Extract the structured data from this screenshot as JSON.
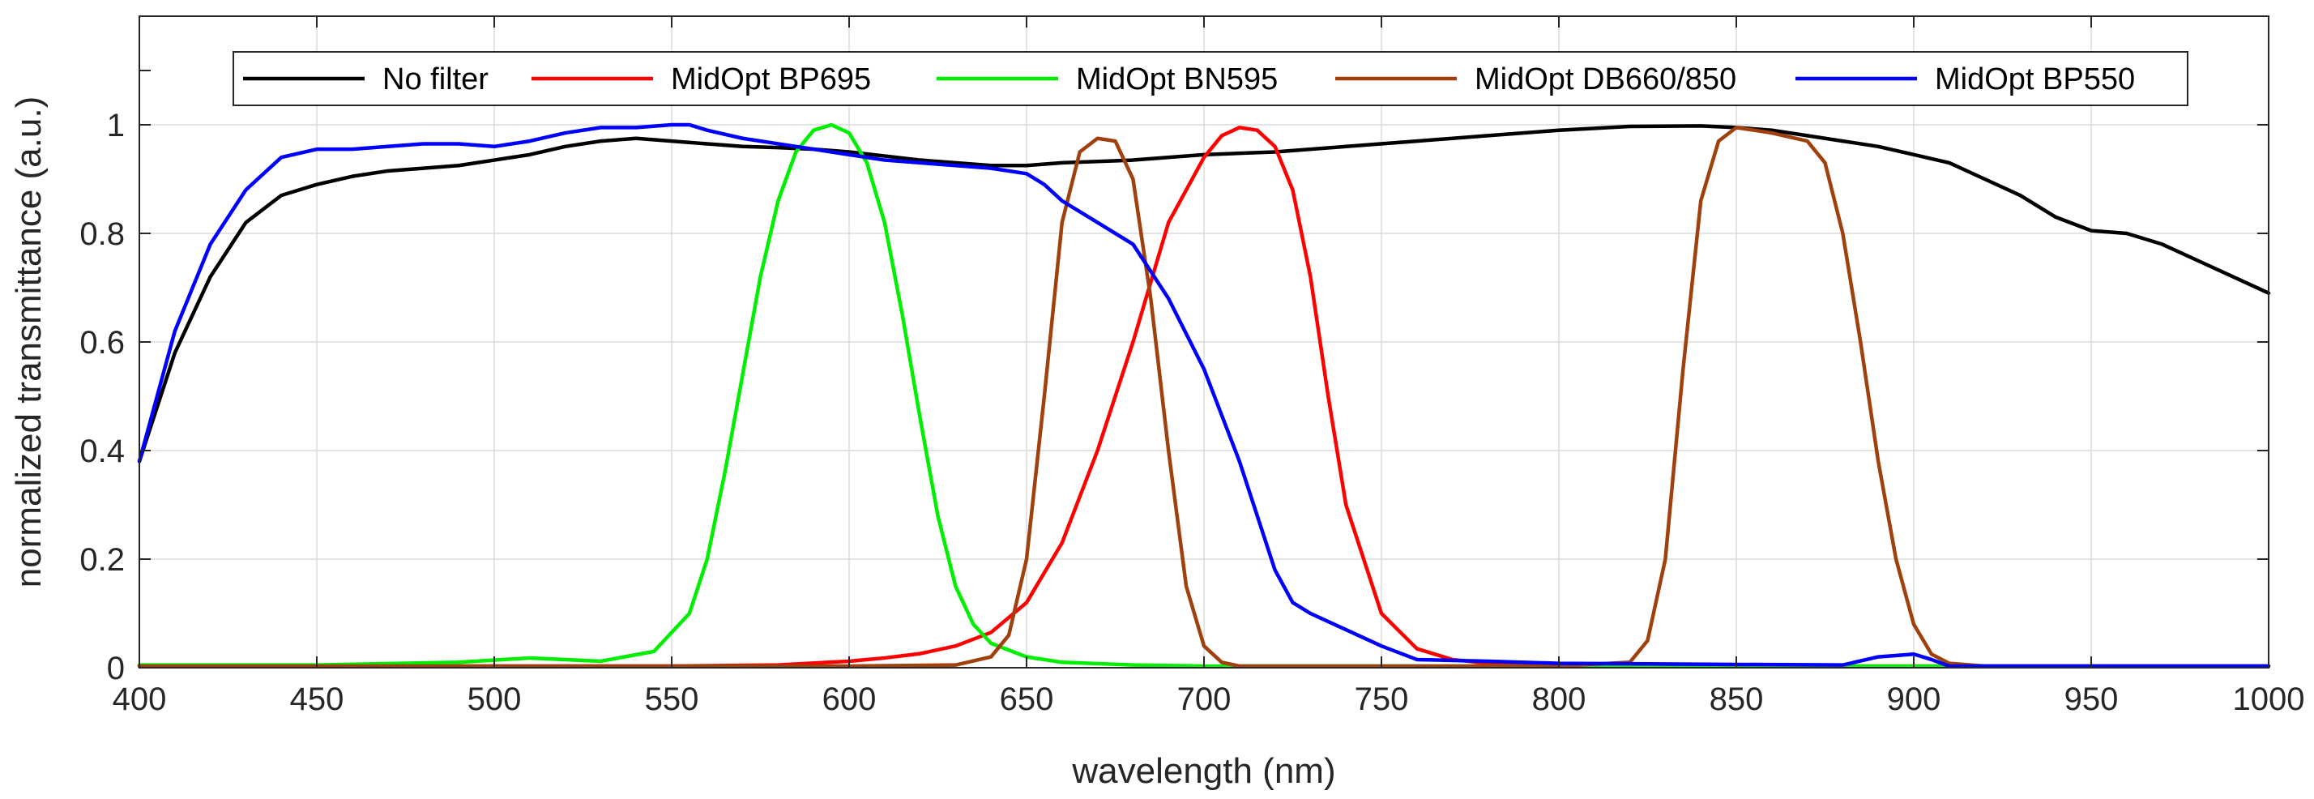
{
  "chart_data": {
    "type": "line",
    "title": "",
    "xlabel": "wavelength (nm)",
    "ylabel": "normalized transmittance (a.u.)",
    "xlim": [
      400,
      1000
    ],
    "ylim": [
      0,
      1.2
    ],
    "xticks": [
      400,
      450,
      500,
      550,
      600,
      650,
      700,
      750,
      800,
      850,
      900,
      950,
      1000
    ],
    "yticks": [
      0,
      0.2,
      0.4,
      0.6,
      0.8,
      1
    ],
    "ytick_labels": [
      "0",
      "0.2",
      "0.4",
      "0.6",
      "0.8",
      "1"
    ],
    "grid": true,
    "legend_position": "top",
    "series": [
      {
        "name": "No filter",
        "color": "#000000",
        "x": [
          400,
          410,
          420,
          430,
          440,
          450,
          460,
          470,
          480,
          490,
          500,
          510,
          520,
          530,
          540,
          550,
          560,
          570,
          580,
          590,
          600,
          620,
          640,
          650,
          660,
          680,
          700,
          720,
          740,
          760,
          780,
          800,
          820,
          840,
          850,
          860,
          870,
          880,
          890,
          900,
          910,
          920,
          930,
          940,
          950,
          960,
          970,
          980,
          990,
          1000
        ],
        "y": [
          0.38,
          0.58,
          0.72,
          0.82,
          0.87,
          0.89,
          0.905,
          0.915,
          0.92,
          0.925,
          0.935,
          0.945,
          0.96,
          0.97,
          0.975,
          0.97,
          0.965,
          0.96,
          0.958,
          0.955,
          0.95,
          0.935,
          0.925,
          0.925,
          0.93,
          0.935,
          0.945,
          0.95,
          0.96,
          0.97,
          0.98,
          0.99,
          0.997,
          0.998,
          0.995,
          0.99,
          0.98,
          0.97,
          0.96,
          0.945,
          0.93,
          0.9,
          0.87,
          0.83,
          0.805,
          0.8,
          0.78,
          0.75,
          0.72,
          0.69
        ]
      },
      {
        "name": "MidOpt BP695",
        "color": "#ff0000",
        "x": [
          400,
          450,
          500,
          550,
          580,
          600,
          610,
          620,
          630,
          640,
          650,
          660,
          670,
          680,
          690,
          700,
          705,
          710,
          715,
          720,
          725,
          730,
          735,
          740,
          750,
          760,
          770,
          780,
          800,
          850,
          900,
          1000
        ],
        "y": [
          0.003,
          0.003,
          0.003,
          0.003,
          0.005,
          0.012,
          0.018,
          0.026,
          0.04,
          0.065,
          0.12,
          0.23,
          0.4,
          0.6,
          0.82,
          0.94,
          0.98,
          0.995,
          0.99,
          0.96,
          0.88,
          0.72,
          0.5,
          0.3,
          0.1,
          0.035,
          0.015,
          0.008,
          0.004,
          0.003,
          0.003,
          0.003
        ]
      },
      {
        "name": "MidOpt BN595",
        "color": "#00ee00",
        "x": [
          400,
          450,
          490,
          510,
          530,
          545,
          555,
          560,
          565,
          570,
          575,
          580,
          585,
          590,
          595,
          600,
          605,
          610,
          615,
          620,
          625,
          630,
          635,
          640,
          650,
          660,
          680,
          700,
          750,
          800,
          900,
          1000
        ],
        "y": [
          0.005,
          0.005,
          0.01,
          0.018,
          0.012,
          0.03,
          0.1,
          0.2,
          0.36,
          0.54,
          0.72,
          0.86,
          0.95,
          0.99,
          1.0,
          0.985,
          0.93,
          0.82,
          0.65,
          0.46,
          0.28,
          0.15,
          0.08,
          0.045,
          0.02,
          0.01,
          0.005,
          0.003,
          0.003,
          0.003,
          0.003,
          0.003
        ]
      },
      {
        "name": "MidOpt DB660/850",
        "color": "#a0410d",
        "x": [
          400,
          500,
          600,
          630,
          640,
          645,
          650,
          655,
          660,
          665,
          670,
          675,
          680,
          685,
          690,
          695,
          700,
          705,
          710,
          750,
          800,
          820,
          825,
          830,
          835,
          840,
          845,
          850,
          855,
          860,
          870,
          875,
          880,
          885,
          890,
          895,
          900,
          905,
          910,
          920,
          1000
        ],
        "y": [
          0.003,
          0.003,
          0.003,
          0.005,
          0.02,
          0.06,
          0.2,
          0.5,
          0.82,
          0.95,
          0.975,
          0.97,
          0.9,
          0.68,
          0.4,
          0.15,
          0.04,
          0.01,
          0.003,
          0.003,
          0.003,
          0.01,
          0.05,
          0.2,
          0.55,
          0.86,
          0.97,
          0.995,
          0.99,
          0.985,
          0.97,
          0.93,
          0.8,
          0.6,
          0.38,
          0.2,
          0.08,
          0.025,
          0.008,
          0.003,
          0.003
        ]
      },
      {
        "name": "MidOpt BP550",
        "color": "#0000ff",
        "x": [
          400,
          410,
          420,
          430,
          440,
          450,
          460,
          470,
          480,
          490,
          500,
          510,
          520,
          530,
          540,
          550,
          555,
          560,
          570,
          580,
          590,
          600,
          610,
          620,
          630,
          640,
          650,
          655,
          660,
          670,
          680,
          690,
          700,
          710,
          715,
          720,
          725,
          730,
          740,
          750,
          760,
          780,
          800,
          850,
          880,
          890,
          900,
          905,
          910,
          1000
        ],
        "y": [
          0.38,
          0.62,
          0.78,
          0.88,
          0.94,
          0.955,
          0.955,
          0.96,
          0.965,
          0.965,
          0.96,
          0.97,
          0.985,
          0.995,
          0.995,
          1.0,
          1.0,
          0.99,
          0.975,
          0.965,
          0.955,
          0.945,
          0.935,
          0.93,
          0.925,
          0.92,
          0.91,
          0.89,
          0.86,
          0.82,
          0.78,
          0.68,
          0.55,
          0.38,
          0.28,
          0.18,
          0.12,
          0.1,
          0.07,
          0.04,
          0.015,
          0.012,
          0.008,
          0.006,
          0.005,
          0.02,
          0.025,
          0.015,
          0.003,
          0.003
        ]
      }
    ]
  }
}
